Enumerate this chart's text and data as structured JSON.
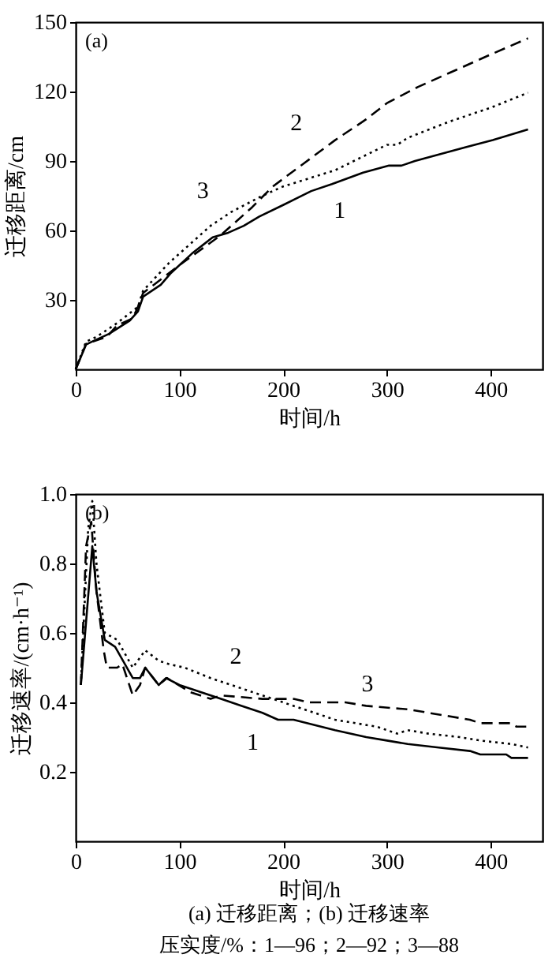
{
  "chart_data": [
    {
      "type": "line",
      "title": "(a)",
      "xlabel": "时间/h",
      "ylabel": "迁移距离/cm",
      "xlim": [
        0,
        450
      ],
      "xticks": [
        0,
        100,
        200,
        300,
        400
      ],
      "ylim": [
        0,
        150
      ],
      "yticks": [
        30,
        60,
        90,
        120,
        150
      ],
      "series": [
        {
          "color": "#000000",
          "line_style": "solid",
          "x": [
            0,
            10,
            15,
            32,
            52,
            60,
            65,
            82,
            92,
            112,
            132,
            147,
            162,
            177,
            200,
            227,
            247,
            277,
            302,
            314,
            327,
            376,
            402,
            436
          ],
          "values": [
            0,
            10.7,
            11.8,
            15.3,
            21,
            25,
            31.4,
            36.5,
            41.7,
            50,
            57,
            59,
            62,
            66,
            71,
            77,
            80,
            85,
            88,
            88,
            90,
            96,
            99,
            103.6
          ]
        },
        {
          "color": "#000000",
          "line_style": "dashed",
          "x": [
            0,
            10,
            30,
            40,
            55,
            60,
            65,
            100,
            140,
            150,
            170,
            190,
            220,
            250,
            280,
            300,
            330,
            360,
            400,
            436
          ],
          "values": [
            0,
            11,
            14,
            19,
            22,
            27,
            33,
            45,
            58,
            62,
            70,
            79,
            89,
            99,
            108,
            115,
            122,
            128,
            136,
            143
          ]
        },
        {
          "color": "#000000",
          "line_style": "dotted",
          "x": [
            0,
            10,
            20,
            40,
            60,
            65,
            90,
            110,
            130,
            150,
            180,
            200,
            250,
            300,
            310,
            320,
            360,
            400,
            436
          ],
          "values": [
            0,
            12,
            14,
            20,
            27,
            34,
            46,
            54,
            62,
            68,
            75,
            79,
            86,
            97,
            97,
            100,
            107,
            113,
            119.5
          ]
        }
      ],
      "annotations": [
        {
          "text": "1",
          "x": 227,
          "y": 77
        },
        {
          "text": "2",
          "x": 240,
          "y": 95.7
        },
        {
          "text": "3",
          "x": 150,
          "y": 68
        }
      ]
    },
    {
      "type": "line",
      "title": "(b)",
      "xlabel": "时间/h",
      "ylabel": "迁移速率/(cm·h⁻¹)",
      "xlim": [
        0,
        450
      ],
      "xticks": [
        0,
        100,
        200,
        300,
        400
      ],
      "ylim": [
        0,
        1.0
      ],
      "yticks": [
        0.2,
        0.4,
        0.6,
        0.8,
        {
          "value": 1.0,
          "label": "1.0"
        }
      ],
      "series": [
        {
          "color": "#000000",
          "line_style": "solid",
          "x": [
            5,
            16,
            20,
            28,
            38,
            55,
            62,
            67,
            80,
            87,
            100,
            120,
            140,
            160,
            180,
            195,
            210,
            250,
            280,
            300,
            320,
            350,
            380,
            390,
            415,
            420,
            436
          ],
          "values": [
            0.45,
            0.85,
            0.72,
            0.58,
            0.56,
            0.47,
            0.47,
            0.5,
            0.45,
            0.47,
            0.45,
            0.43,
            0.41,
            0.39,
            0.37,
            0.35,
            0.35,
            0.32,
            0.3,
            0.29,
            0.28,
            0.27,
            0.26,
            0.25,
            0.25,
            0.24,
            0.24
          ]
        },
        {
          "color": "#000000",
          "line_style": "dashed",
          "x": [
            5,
            10,
            15,
            20,
            27,
            30,
            40,
            45,
            55,
            62,
            67,
            80,
            88,
            110,
            130,
            140,
            180,
            210,
            225,
            260,
            280,
            320,
            340,
            380,
            390,
            420,
            425,
            436
          ],
          "values": [
            0.45,
            0.85,
            0.92,
            0.72,
            0.55,
            0.5,
            0.5,
            0.51,
            0.42,
            0.45,
            0.5,
            0.45,
            0.47,
            0.43,
            0.41,
            0.42,
            0.41,
            0.41,
            0.4,
            0.4,
            0.39,
            0.38,
            0.37,
            0.35,
            0.34,
            0.34,
            0.33,
            0.33
          ]
        },
        {
          "color": "#000000",
          "line_style": "dotted",
          "x": [
            5,
            12,
            16,
            20,
            28,
            40,
            55,
            67,
            80,
            90,
            105,
            130,
            150,
            180,
            200,
            250,
            290,
            310,
            320,
            340,
            370,
            390,
            420,
            436
          ],
          "values": [
            0.45,
            0.9,
            0.98,
            0.8,
            0.6,
            0.58,
            0.5,
            0.55,
            0.52,
            0.51,
            0.5,
            0.47,
            0.45,
            0.42,
            0.4,
            0.35,
            0.33,
            0.31,
            0.32,
            0.31,
            0.3,
            0.29,
            0.28,
            0.27
          ]
        }
      ],
      "annotations": [
        {
          "text": "1",
          "x": 195,
          "y": 0.35
        },
        {
          "text": "2",
          "x": 130,
          "y": 0.47
        },
        {
          "text": "3",
          "x": 260,
          "y": 0.4
        },
        "(a) 迁移距离；(b) 迁移速率",
        "压实度/%：1—96；2—92；3—88"
      ]
    }
  ]
}
